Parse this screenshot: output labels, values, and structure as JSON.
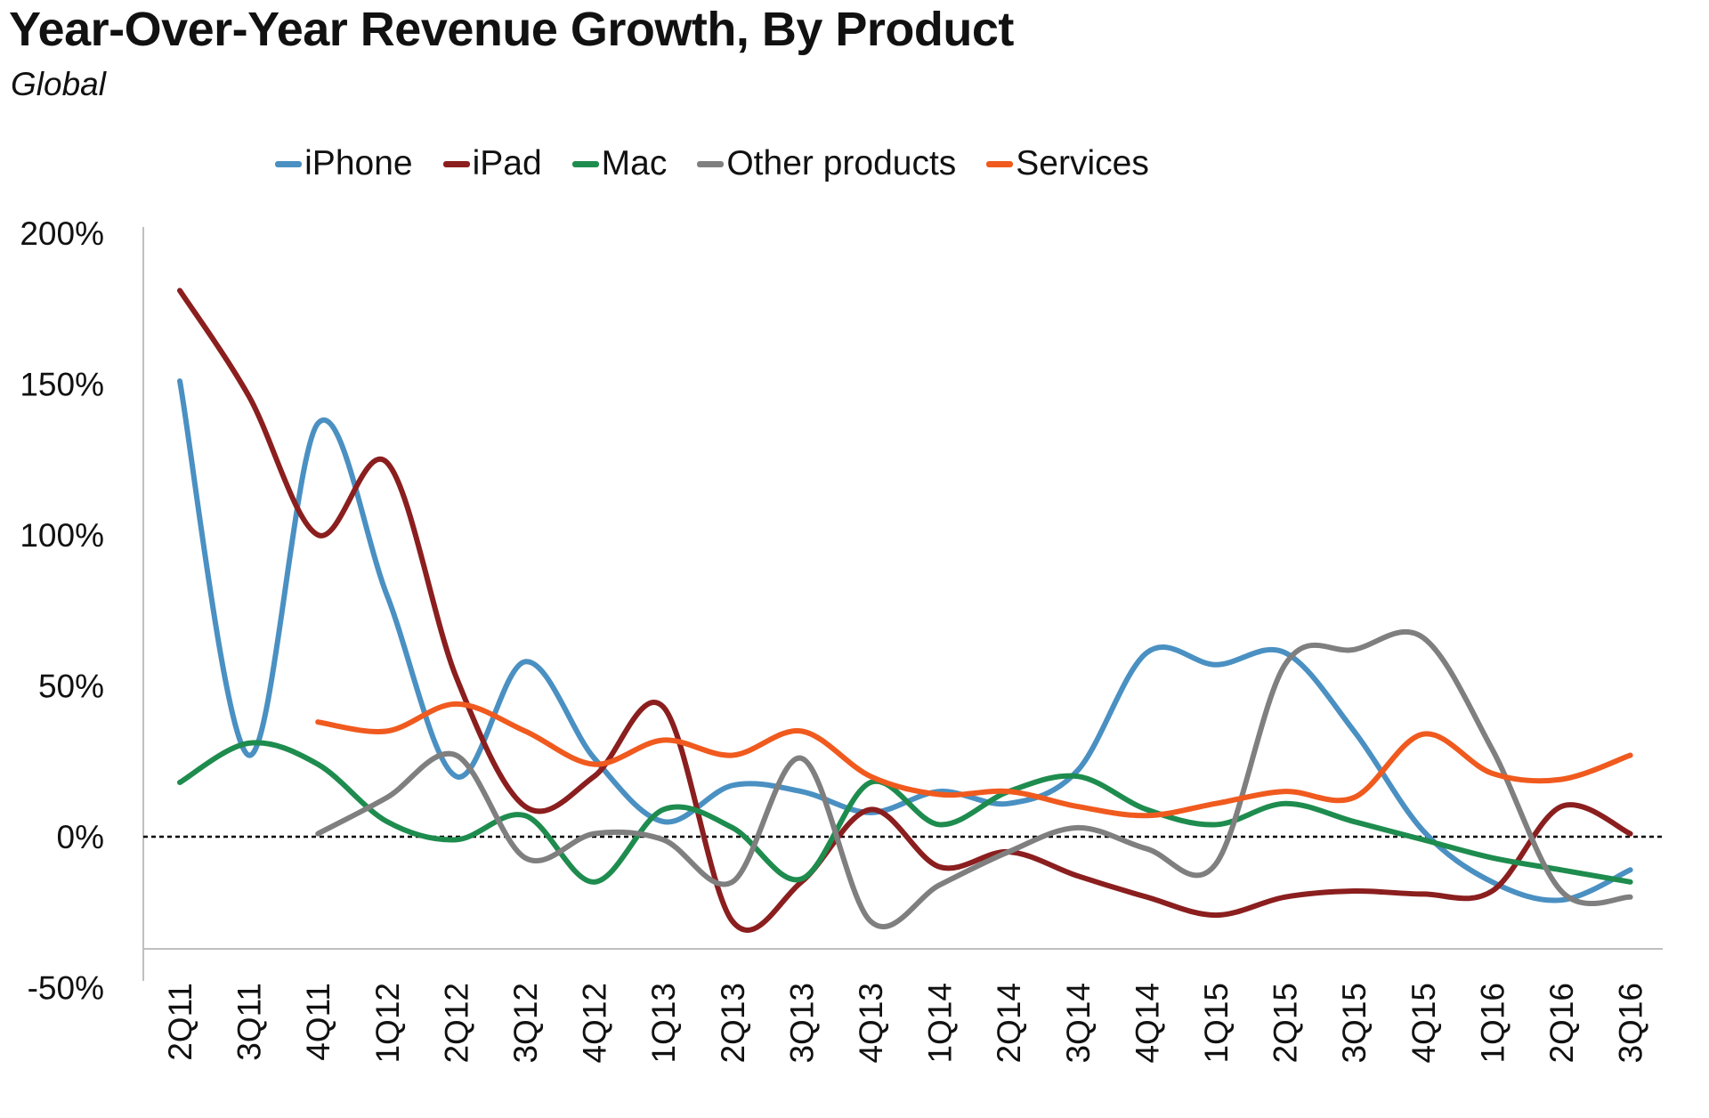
{
  "chart_data": {
    "type": "line",
    "title": "Year-Over-Year Revenue Growth, By Product",
    "subtitle": "Global",
    "xlabel": "",
    "ylabel": "",
    "ylim": [
      -50,
      200
    ],
    "yticks": [
      200,
      150,
      100,
      50,
      0,
      -50
    ],
    "ytick_labels": [
      "200%",
      "150%",
      "100%",
      "50%",
      "0%",
      "-50%"
    ],
    "legend_position": "top",
    "grid": false,
    "reference_line": {
      "value": 0,
      "style": "dashed",
      "color": "#000000"
    },
    "categories": [
      "2Q11",
      "3Q11",
      "4Q11",
      "1Q12",
      "2Q12",
      "3Q12",
      "4Q12",
      "1Q13",
      "2Q13",
      "3Q13",
      "4Q13",
      "1Q14",
      "2Q14",
      "3Q14",
      "4Q14",
      "1Q15",
      "2Q15",
      "3Q15",
      "4Q15",
      "1Q16",
      "2Q16",
      "3Q16"
    ],
    "series": [
      {
        "name": "iPhone",
        "color": "#4A90C2",
        "values": [
          151,
          27,
          137,
          80,
          20,
          58,
          26,
          5,
          17,
          15,
          8,
          15,
          11,
          22,
          61,
          57,
          61,
          35,
          2,
          -15,
          -21,
          -11
        ]
      },
      {
        "name": "iPad",
        "color": "#8B1E1E",
        "values": [
          181,
          146,
          100,
          124,
          53,
          10,
          20,
          43,
          -28,
          -15,
          9,
          -10,
          -5,
          -13,
          -20,
          -26,
          -20,
          -18,
          -19,
          -18,
          10,
          1
        ]
      },
      {
        "name": "Mac",
        "color": "#1E8C4E",
        "values": [
          18,
          31,
          24,
          5,
          -1,
          7,
          -15,
          9,
          3,
          -14,
          18,
          4,
          15,
          20,
          9,
          4,
          11,
          5,
          -1,
          -7,
          -11,
          -15
        ]
      },
      {
        "name": "Other products",
        "color": "#7F7F7F",
        "values": [
          null,
          null,
          1,
          13,
          27,
          -7,
          1,
          -1,
          -15,
          26,
          -28,
          -16,
          -5,
          3,
          -4,
          -9,
          57,
          62,
          66,
          29,
          -18,
          -20
        ]
      },
      {
        "name": "Services",
        "color": "#F05A1E",
        "values": [
          null,
          null,
          38,
          35,
          44,
          35,
          24,
          32,
          27,
          35,
          20,
          14,
          15,
          10,
          7,
          11,
          15,
          13,
          34,
          21,
          19,
          27
        ]
      }
    ]
  }
}
